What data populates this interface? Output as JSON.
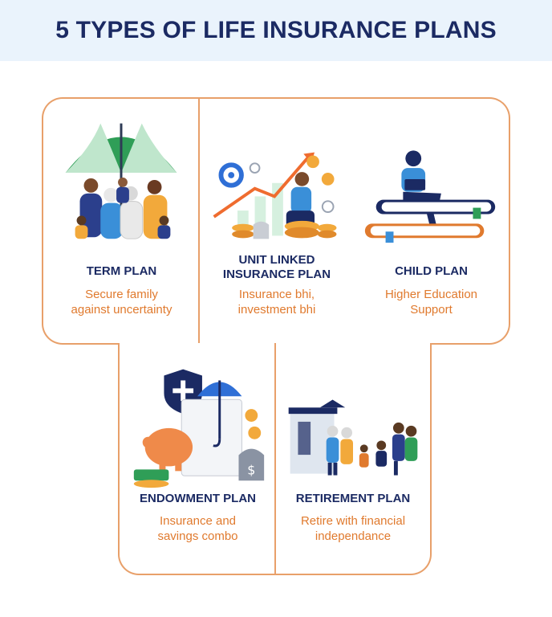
{
  "header": {
    "title": "5 TYPES OF LIFE INSURANCE PLANS"
  },
  "plans": [
    {
      "title_lines": [
        "TERM PLAN"
      ],
      "desc_lines": [
        "Secure family",
        "against uncertainty"
      ],
      "icon": "umbrella-family-icon"
    },
    {
      "title_lines": [
        "UNIT LINKED",
        "INSURANCE PLAN"
      ],
      "desc_lines": [
        "Insurance bhi,",
        "investment bhi"
      ],
      "icon": "growth-chart-coins-icon"
    },
    {
      "title_lines": [
        "CHILD PLAN"
      ],
      "desc_lines": [
        "Higher Education",
        "Support"
      ],
      "icon": "books-student-icon"
    },
    {
      "title_lines": [
        "ENDOWMENT PLAN"
      ],
      "desc_lines": [
        "Insurance and",
        "savings combo"
      ],
      "icon": "piggy-bank-shield-icon"
    },
    {
      "title_lines": [
        "RETIREMENT PLAN"
      ],
      "desc_lines": [
        "Retire with financial",
        "independance"
      ],
      "icon": "family-home-icon"
    }
  ],
  "colors": {
    "navy": "#1b2a63",
    "orange": "#e07a2e",
    "border": "#e8a06a",
    "header_bg": "#eaf3fc"
  }
}
